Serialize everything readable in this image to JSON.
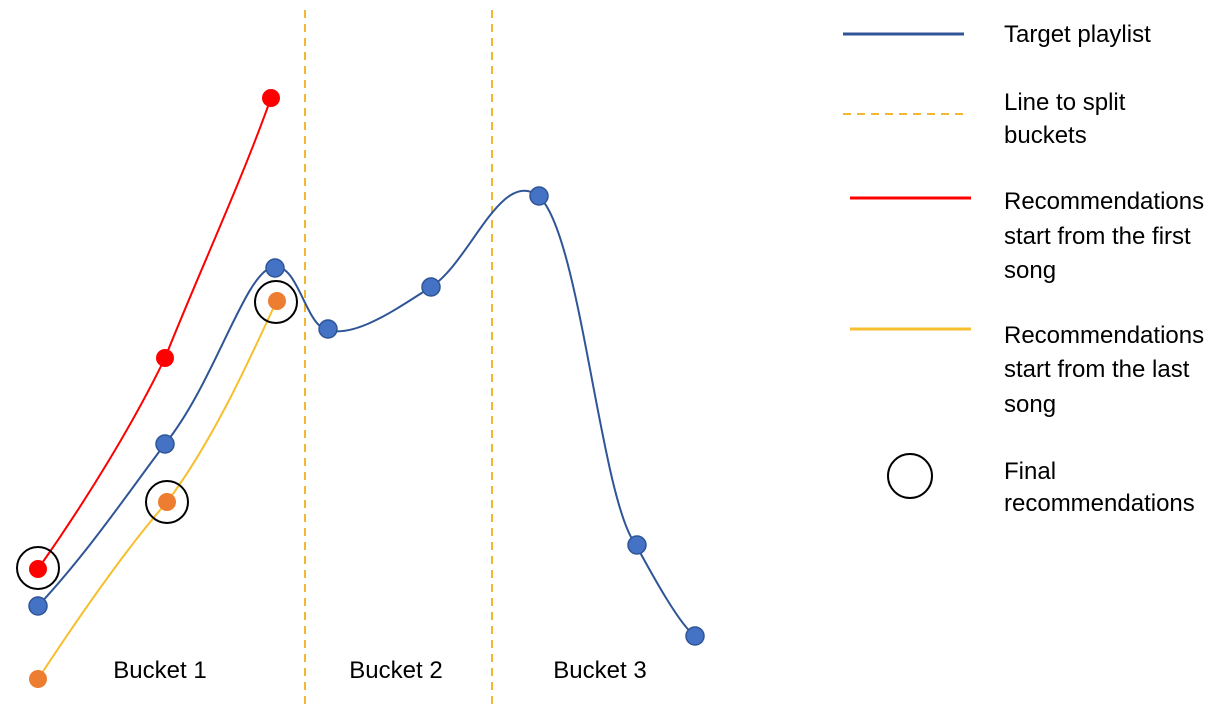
{
  "colors": {
    "target": "#2F5597",
    "target_marker": "#4472C4",
    "split": "#F4B731",
    "first": "#FF0000",
    "last": "#F7BF2F",
    "last_marker": "#ED7D31",
    "circle": "#000000"
  },
  "buckets": {
    "b1": "Bucket 1",
    "b2": "Bucket 2",
    "b3": "Bucket 3"
  },
  "legend": {
    "target": [
      "Target playlist"
    ],
    "split": [
      "Line to split",
      "buckets"
    ],
    "first": [
      "Recommendations",
      "start from the first",
      "song"
    ],
    "last": [
      "Recommendations",
      "start from the last",
      "song"
    ],
    "final": [
      "Final",
      "recommendations"
    ]
  }
}
